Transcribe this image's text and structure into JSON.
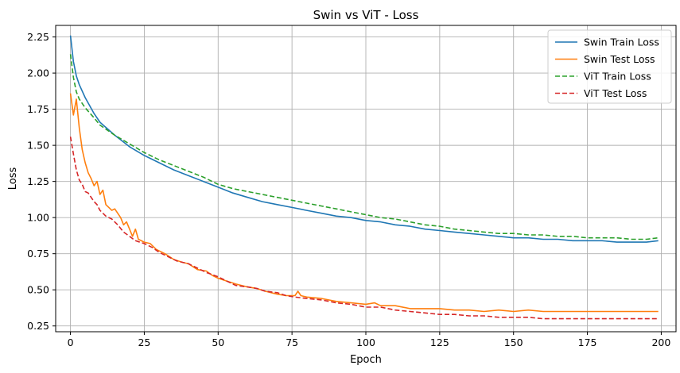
{
  "chart_data": {
    "type": "line",
    "title": "Swin vs ViT - Loss",
    "xlabel": "Epoch",
    "ylabel": "Loss",
    "xlim": [
      -5,
      205
    ],
    "ylim": [
      0.21,
      2.33
    ],
    "xticks": [
      0,
      25,
      50,
      75,
      100,
      125,
      150,
      175,
      200
    ],
    "yticks": [
      0.25,
      0.5,
      0.75,
      1.0,
      1.25,
      1.5,
      1.75,
      2.0,
      2.25
    ],
    "grid": true,
    "legend_position": "top-right",
    "series": [
      {
        "name": "Swin Train Loss",
        "color": "#1f77b4",
        "dash": "solid",
        "points": [
          [
            0,
            2.26
          ],
          [
            1,
            2.08
          ],
          [
            2,
            1.98
          ],
          [
            3,
            1.92
          ],
          [
            5,
            1.83
          ],
          [
            8,
            1.72
          ],
          [
            10,
            1.66
          ],
          [
            15,
            1.57
          ],
          [
            20,
            1.49
          ],
          [
            25,
            1.43
          ],
          [
            30,
            1.38
          ],
          [
            35,
            1.33
          ],
          [
            40,
            1.29
          ],
          [
            45,
            1.25
          ],
          [
            50,
            1.21
          ],
          [
            55,
            1.17
          ],
          [
            60,
            1.14
          ],
          [
            65,
            1.11
          ],
          [
            70,
            1.09
          ],
          [
            75,
            1.07
          ],
          [
            80,
            1.05
          ],
          [
            85,
            1.03
          ],
          [
            90,
            1.01
          ],
          [
            95,
            1.0
          ],
          [
            100,
            0.98
          ],
          [
            105,
            0.97
          ],
          [
            110,
            0.95
          ],
          [
            115,
            0.94
          ],
          [
            120,
            0.92
          ],
          [
            125,
            0.91
          ],
          [
            130,
            0.9
          ],
          [
            135,
            0.89
          ],
          [
            140,
            0.88
          ],
          [
            145,
            0.87
          ],
          [
            150,
            0.86
          ],
          [
            155,
            0.86
          ],
          [
            160,
            0.85
          ],
          [
            165,
            0.85
          ],
          [
            170,
            0.84
          ],
          [
            175,
            0.84
          ],
          [
            180,
            0.84
          ],
          [
            185,
            0.83
          ],
          [
            190,
            0.83
          ],
          [
            195,
            0.83
          ],
          [
            199,
            0.84
          ]
        ]
      },
      {
        "name": "Swin Test Loss",
        "color": "#ff7f0e",
        "dash": "solid",
        "points": [
          [
            0,
            1.86
          ],
          [
            1,
            1.71
          ],
          [
            2,
            1.82
          ],
          [
            3,
            1.62
          ],
          [
            4,
            1.47
          ],
          [
            5,
            1.38
          ],
          [
            6,
            1.31
          ],
          [
            7,
            1.27
          ],
          [
            8,
            1.22
          ],
          [
            9,
            1.25
          ],
          [
            10,
            1.16
          ],
          [
            11,
            1.19
          ],
          [
            12,
            1.09
          ],
          [
            14,
            1.05
          ],
          [
            15,
            1.06
          ],
          [
            17,
            1.0
          ],
          [
            18,
            0.95
          ],
          [
            19,
            0.97
          ],
          [
            20,
            0.92
          ],
          [
            21,
            0.87
          ],
          [
            22,
            0.92
          ],
          [
            23,
            0.85
          ],
          [
            25,
            0.83
          ],
          [
            27,
            0.82
          ],
          [
            29,
            0.78
          ],
          [
            32,
            0.75
          ],
          [
            35,
            0.71
          ],
          [
            38,
            0.69
          ],
          [
            40,
            0.68
          ],
          [
            43,
            0.64
          ],
          [
            46,
            0.63
          ],
          [
            48,
            0.6
          ],
          [
            50,
            0.58
          ],
          [
            53,
            0.56
          ],
          [
            56,
            0.54
          ],
          [
            60,
            0.52
          ],
          [
            63,
            0.51
          ],
          [
            66,
            0.49
          ],
          [
            70,
            0.47
          ],
          [
            73,
            0.46
          ],
          [
            76,
            0.46
          ],
          [
            77,
            0.49
          ],
          [
            78,
            0.46
          ],
          [
            80,
            0.45
          ],
          [
            85,
            0.44
          ],
          [
            90,
            0.42
          ],
          [
            95,
            0.41
          ],
          [
            100,
            0.4
          ],
          [
            103,
            0.41
          ],
          [
            105,
            0.39
          ],
          [
            110,
            0.39
          ],
          [
            115,
            0.37
          ],
          [
            120,
            0.37
          ],
          [
            125,
            0.37
          ],
          [
            130,
            0.36
          ],
          [
            135,
            0.36
          ],
          [
            140,
            0.35
          ],
          [
            145,
            0.36
          ],
          [
            150,
            0.35
          ],
          [
            155,
            0.36
          ],
          [
            160,
            0.35
          ],
          [
            165,
            0.35
          ],
          [
            170,
            0.35
          ],
          [
            175,
            0.35
          ],
          [
            180,
            0.35
          ],
          [
            185,
            0.35
          ],
          [
            190,
            0.35
          ],
          [
            195,
            0.35
          ],
          [
            199,
            0.35
          ]
        ]
      },
      {
        "name": "ViT Train Loss",
        "color": "#2ca02c",
        "dash": "dashed",
        "points": [
          [
            0,
            2.13
          ],
          [
            1,
            1.97
          ],
          [
            2,
            1.87
          ],
          [
            3,
            1.82
          ],
          [
            5,
            1.76
          ],
          [
            8,
            1.69
          ],
          [
            10,
            1.64
          ],
          [
            15,
            1.57
          ],
          [
            20,
            1.51
          ],
          [
            25,
            1.45
          ],
          [
            30,
            1.4
          ],
          [
            35,
            1.36
          ],
          [
            40,
            1.32
          ],
          [
            45,
            1.28
          ],
          [
            50,
            1.23
          ],
          [
            55,
            1.2
          ],
          [
            60,
            1.18
          ],
          [
            65,
            1.16
          ],
          [
            70,
            1.14
          ],
          [
            75,
            1.12
          ],
          [
            80,
            1.1
          ],
          [
            85,
            1.08
          ],
          [
            90,
            1.06
          ],
          [
            95,
            1.04
          ],
          [
            100,
            1.02
          ],
          [
            105,
            1.0
          ],
          [
            110,
            0.99
          ],
          [
            115,
            0.97
          ],
          [
            120,
            0.95
          ],
          [
            125,
            0.94
          ],
          [
            130,
            0.92
          ],
          [
            135,
            0.91
          ],
          [
            140,
            0.9
          ],
          [
            145,
            0.89
          ],
          [
            150,
            0.89
          ],
          [
            155,
            0.88
          ],
          [
            160,
            0.88
          ],
          [
            165,
            0.87
          ],
          [
            170,
            0.87
          ],
          [
            175,
            0.86
          ],
          [
            180,
            0.86
          ],
          [
            185,
            0.86
          ],
          [
            190,
            0.85
          ],
          [
            195,
            0.85
          ],
          [
            199,
            0.86
          ]
        ]
      },
      {
        "name": "ViT Test Loss",
        "color": "#d62728",
        "dash": "dashed",
        "points": [
          [
            0,
            1.56
          ],
          [
            1,
            1.44
          ],
          [
            2,
            1.33
          ],
          [
            3,
            1.26
          ],
          [
            4,
            1.23
          ],
          [
            5,
            1.18
          ],
          [
            6,
            1.17
          ],
          [
            7,
            1.14
          ],
          [
            8,
            1.11
          ],
          [
            9,
            1.09
          ],
          [
            10,
            1.05
          ],
          [
            12,
            1.01
          ],
          [
            14,
            0.99
          ],
          [
            16,
            0.95
          ],
          [
            18,
            0.9
          ],
          [
            20,
            0.87
          ],
          [
            22,
            0.84
          ],
          [
            25,
            0.82
          ],
          [
            28,
            0.79
          ],
          [
            30,
            0.76
          ],
          [
            33,
            0.73
          ],
          [
            36,
            0.7
          ],
          [
            40,
            0.68
          ],
          [
            43,
            0.65
          ],
          [
            46,
            0.62
          ],
          [
            50,
            0.59
          ],
          [
            53,
            0.56
          ],
          [
            56,
            0.53
          ],
          [
            60,
            0.52
          ],
          [
            63,
            0.51
          ],
          [
            66,
            0.49
          ],
          [
            70,
            0.48
          ],
          [
            73,
            0.46
          ],
          [
            76,
            0.45
          ],
          [
            80,
            0.44
          ],
          [
            85,
            0.43
          ],
          [
            90,
            0.41
          ],
          [
            95,
            0.4
          ],
          [
            100,
            0.38
          ],
          [
            105,
            0.38
          ],
          [
            110,
            0.36
          ],
          [
            115,
            0.35
          ],
          [
            120,
            0.34
          ],
          [
            125,
            0.33
          ],
          [
            130,
            0.33
          ],
          [
            135,
            0.32
          ],
          [
            140,
            0.32
          ],
          [
            145,
            0.31
          ],
          [
            150,
            0.31
          ],
          [
            155,
            0.31
          ],
          [
            160,
            0.3
          ],
          [
            165,
            0.3
          ],
          [
            170,
            0.3
          ],
          [
            175,
            0.3
          ],
          [
            180,
            0.3
          ],
          [
            185,
            0.3
          ],
          [
            190,
            0.3
          ],
          [
            195,
            0.3
          ],
          [
            199,
            0.3
          ]
        ]
      }
    ]
  }
}
